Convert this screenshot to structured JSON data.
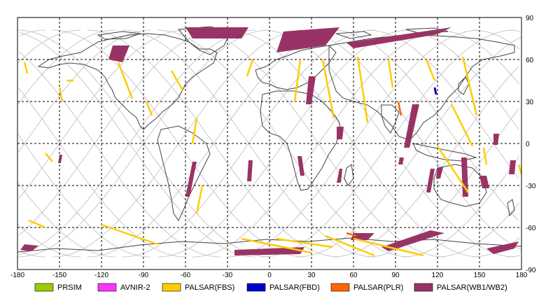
{
  "chart_data": {
    "type": "map",
    "x_ticks": [
      -180,
      -150,
      -120,
      -90,
      -60,
      -30,
      0,
      30,
      60,
      90,
      120,
      150,
      180
    ],
    "y_ticks": [
      90,
      60,
      30,
      0,
      -30,
      -60,
      -90
    ],
    "xlim": [
      -180,
      180
    ],
    "ylim": [
      -90,
      90
    ],
    "grid": true,
    "legend": [
      {
        "label": "PRSIM",
        "color": "#99cc00"
      },
      {
        "label": "AVNIR-2",
        "color": "#ff33ff"
      },
      {
        "label": "PALSAR(FBS)",
        "color": "#ffcc00"
      },
      {
        "label": "PALSAR(FBD)",
        "color": "#0000cc"
      },
      {
        "label": "PALSAR(PLR)",
        "color": "#ff6600"
      },
      {
        "label": "PALSAR(WB1/WB2)",
        "color": "#993366"
      }
    ],
    "swaths": {
      "wb": [
        [
          [
            -60,
            83
          ],
          [
            -15,
            83
          ],
          [
            -20,
            75
          ],
          [
            -55,
            75
          ]
        ],
        [
          [
            10,
            80
          ],
          [
            50,
            83
          ],
          [
            40,
            70
          ],
          [
            5,
            65
          ]
        ],
        [
          [
            55,
            72
          ],
          [
            130,
            83
          ],
          [
            120,
            78
          ],
          [
            60,
            68
          ]
        ],
        [
          [
            -112,
            70
          ],
          [
            -100,
            70
          ],
          [
            -105,
            58
          ],
          [
            -115,
            60
          ]
        ],
        [
          [
            28,
            48
          ],
          [
            33,
            48
          ],
          [
            30,
            28
          ],
          [
            26,
            28
          ]
        ],
        [
          [
            102,
            28
          ],
          [
            107,
            28
          ],
          [
            100,
            -3
          ],
          [
            96,
            -3
          ]
        ],
        [
          [
            -55,
            -13
          ],
          [
            -52,
            -13
          ],
          [
            -57,
            -38
          ],
          [
            -60,
            -38
          ]
        ],
        [
          [
            20,
            -9
          ],
          [
            23,
            -9
          ],
          [
            25,
            -23
          ],
          [
            22,
            -23
          ]
        ],
        [
          [
            50,
            -18
          ],
          [
            52,
            -18
          ],
          [
            51,
            -28
          ],
          [
            48,
            -28
          ]
        ],
        [
          [
            137,
            -10
          ],
          [
            141,
            -10
          ],
          [
            142,
            -38
          ],
          [
            138,
            -38
          ]
        ],
        [
          [
            150,
            -23
          ],
          [
            155,
            -23
          ],
          [
            157,
            -32
          ],
          [
            152,
            -32
          ]
        ],
        [
          [
            160,
            7
          ],
          [
            164,
            7
          ],
          [
            163,
            -1
          ],
          [
            160,
            -1
          ]
        ],
        [
          [
            115,
            -18
          ],
          [
            118,
            -18
          ],
          [
            115,
            -35
          ],
          [
            112,
            -35
          ]
        ],
        [
          [
            -175,
            -72
          ],
          [
            -165,
            -73
          ],
          [
            -170,
            -77
          ],
          [
            -178,
            -76
          ]
        ],
        [
          [
            -25,
            -76
          ],
          [
            25,
            -74
          ],
          [
            22,
            -79
          ],
          [
            -25,
            -80
          ]
        ],
        [
          [
            60,
            -64
          ],
          [
            75,
            -64
          ],
          [
            70,
            -69
          ],
          [
            58,
            -69
          ]
        ],
        [
          [
            85,
            -77
          ],
          [
            125,
            -64
          ],
          [
            115,
            -62
          ],
          [
            80,
            -74
          ]
        ],
        [
          [
            155,
            -75
          ],
          [
            178,
            -70
          ],
          [
            175,
            -75
          ],
          [
            160,
            -79
          ]
        ],
        [
          [
            -150,
            -8
          ],
          [
            -148,
            -8
          ],
          [
            -149,
            -14
          ],
          [
            -151,
            -14
          ]
        ],
        [
          [
            93,
            -10
          ],
          [
            96,
            -10
          ],
          [
            95,
            -15
          ],
          [
            92,
            -15
          ]
        ],
        [
          [
            -15,
            -12
          ],
          [
            -12,
            -12
          ],
          [
            -13,
            -27
          ],
          [
            -16,
            -27
          ]
        ],
        [
          [
            48,
            12
          ],
          [
            53,
            12
          ],
          [
            52,
            3
          ],
          [
            48,
            3
          ]
        ],
        [
          [
            172,
            -12
          ],
          [
            176,
            -12
          ],
          [
            175,
            -22
          ],
          [
            171,
            -22
          ]
        ],
        [
          [
            120,
            -17
          ],
          [
            124,
            -17
          ],
          [
            122,
            -25
          ],
          [
            119,
            -25
          ]
        ]
      ],
      "fbs": [
        [
          [
            -145,
            45
          ],
          [
            -140,
            45
          ]
        ],
        [
          [
            -150,
            40
          ],
          [
            -148,
            30
          ]
        ],
        [
          [
            -108,
            58
          ],
          [
            -98,
            32
          ]
        ],
        [
          [
            -70,
            52
          ],
          [
            -62,
            38
          ]
        ],
        [
          [
            -52,
            18
          ],
          [
            -55,
            0
          ]
        ],
        [
          [
            -48,
            -30
          ],
          [
            -52,
            -50
          ]
        ],
        [
          [
            -88,
            30
          ],
          [
            -84,
            20
          ]
        ],
        [
          [
            -12,
            60
          ],
          [
            -16,
            48
          ]
        ],
        [
          [
            22,
            60
          ],
          [
            18,
            30
          ]
        ],
        [
          [
            38,
            60
          ],
          [
            46,
            18
          ]
        ],
        [
          [
            63,
            62
          ],
          [
            70,
            15
          ]
        ],
        [
          [
            85,
            60
          ],
          [
            88,
            40
          ]
        ],
        [
          [
            112,
            60
          ],
          [
            118,
            45
          ]
        ],
        [
          [
            138,
            62
          ],
          [
            148,
            20
          ]
        ],
        [
          [
            130,
            28
          ],
          [
            145,
            -2
          ]
        ],
        [
          [
            120,
            -2
          ],
          [
            142,
            -35
          ]
        ],
        [
          [
            153,
            -3
          ],
          [
            155,
            -15
          ]
        ],
        [
          [
            178,
            -15
          ],
          [
            180,
            -22
          ]
        ],
        [
          [
            -120,
            -58
          ],
          [
            -80,
            -72
          ]
        ],
        [
          [
            -20,
            -68
          ],
          [
            30,
            -78
          ]
        ],
        [
          [
            40,
            -66
          ],
          [
            75,
            -80
          ]
        ],
        [
          [
            60,
            -68
          ],
          [
            110,
            -80
          ]
        ],
        [
          [
            5,
            -68
          ],
          [
            45,
            -74
          ]
        ],
        [
          [
            -160,
            -7
          ],
          [
            -155,
            -13
          ]
        ],
        [
          [
            -175,
            58
          ],
          [
            -173,
            50
          ]
        ],
        [
          [
            -172,
            -55
          ],
          [
            -160,
            -60
          ]
        ]
      ],
      "plr": [
        [
          [
            92,
            30
          ],
          [
            94,
            20
          ]
        ],
        [
          [
            55,
            -64
          ],
          [
            62,
            -66
          ]
        ]
      ],
      "fbd": [
        [
          [
            118,
            40
          ],
          [
            119,
            35
          ]
        ]
      ]
    }
  }
}
